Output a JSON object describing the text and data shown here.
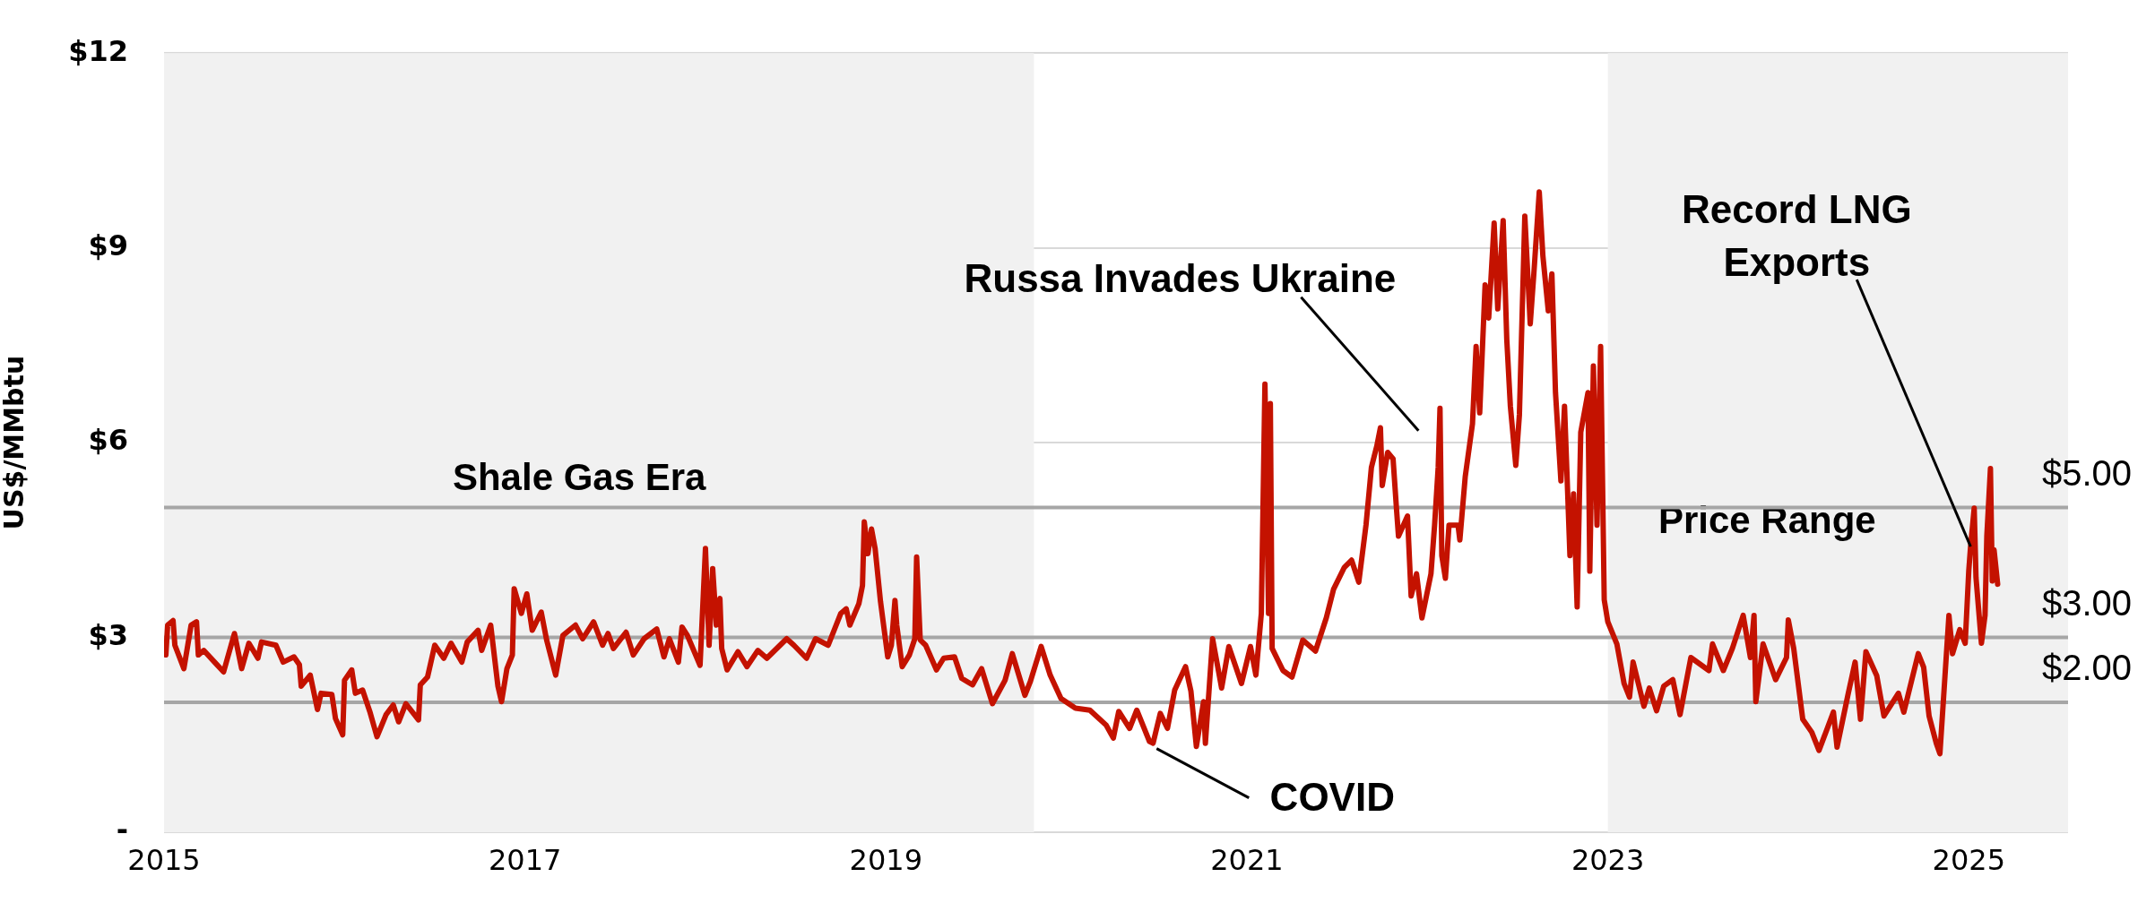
{
  "chart_data": {
    "type": "line",
    "ylabel": "US$/MMbtu",
    "x": [
      2015.01,
      2015.02,
      2015.05,
      2015.06,
      2015.11,
      2015.15,
      2015.18,
      2015.19,
      2015.22,
      2015.28,
      2015.33,
      2015.39,
      2015.43,
      2015.47,
      2015.52,
      2015.54,
      2015.62,
      2015.66,
      2015.72,
      2015.75,
      2015.76,
      2015.81,
      2015.85,
      2015.87,
      2015.93,
      2015.95,
      2015.99,
      2016.0,
      2016.04,
      2016.06,
      2016.1,
      2016.14,
      2016.18,
      2016.23,
      2016.27,
      2016.3,
      2016.34,
      2016.41,
      2016.42,
      2016.46,
      2016.5,
      2016.55,
      2016.59,
      2016.65,
      2016.68,
      2016.74,
      2016.76,
      2016.81,
      2016.85,
      2016.87,
      2016.9,
      2016.93,
      2016.94,
      2016.98,
      2017.01,
      2017.04,
      2017.09,
      2017.12,
      2017.17,
      2017.21,
      2017.28,
      2017.32,
      2017.38,
      2017.43,
      2017.46,
      2017.49,
      2017.56,
      2017.6,
      2017.66,
      2017.73,
      2017.77,
      2017.8,
      2017.85,
      2017.87,
      2017.9,
      2017.97,
      2018.0,
      2018.02,
      2018.04,
      2018.06,
      2018.08,
      2018.09,
      2018.12,
      2018.18,
      2018.23,
      2018.29,
      2018.34,
      2018.45,
      2018.49,
      2018.56,
      2018.61,
      2018.68,
      2018.75,
      2018.78,
      2018.8,
      2018.85,
      2018.87,
      2018.88,
      2018.9,
      2018.92,
      2018.94,
      2018.97,
      2019.01,
      2019.03,
      2019.05,
      2019.06,
      2019.09,
      2019.13,
      2019.16,
      2019.17,
      2019.19,
      2019.22,
      2019.28,
      2019.32,
      2019.38,
      2019.42,
      2019.48,
      2019.53,
      2019.59,
      2019.66,
      2019.7,
      2019.77,
      2019.8,
      2019.86,
      2019.91,
      2019.97,
      2020.05,
      2020.13,
      2020.22,
      2020.26,
      2020.29,
      2020.35,
      2020.39,
      2020.46,
      2020.48,
      2020.52,
      2020.56,
      2020.6,
      2020.66,
      2020.69,
      2020.72,
      2020.76,
      2020.77,
      2020.81,
      2020.86,
      2020.9,
      2020.97,
      2021.02,
      2021.05,
      2021.08,
      2021.1,
      2021.12,
      2021.13,
      2021.14,
      2021.2,
      2021.25,
      2021.31,
      2021.38,
      2021.44,
      2021.48,
      2021.54,
      2021.58,
      2021.62,
      2021.66,
      2021.69,
      2021.72,
      2021.74,
      2021.75,
      2021.78,
      2021.81,
      2021.83,
      2021.84,
      2021.89,
      2021.91,
      2021.94,
      2021.97,
      2022.02,
      2022.04,
      2022.06,
      2022.07,
      2022.08,
      2022.1,
      2022.12,
      2022.17,
      2022.18,
      2022.21,
      2022.25,
      2022.27,
      2022.29,
      2022.32,
      2022.34,
      2022.37,
      2022.39,
      2022.42,
      2022.44,
      2022.46,
      2022.49,
      2022.51,
      2022.54,
      2022.57,
      2022.59,
      2022.62,
      2022.64,
      2022.67,
      2022.69,
      2022.71,
      2022.74,
      2022.76,
      2022.79,
      2022.81,
      2022.83,
      2022.85,
      2022.89,
      2022.9,
      2022.92,
      2022.94,
      2022.96,
      2022.98,
      2023.0,
      2023.05,
      2023.09,
      2023.12,
      2023.14,
      2023.2,
      2023.23,
      2023.27,
      2023.31,
      2023.36,
      2023.4,
      2023.46,
      2023.56,
      2023.58,
      2023.64,
      2023.69,
      2023.75,
      2023.79,
      2023.81,
      2023.82,
      2023.86,
      2023.93,
      2023.99,
      2024.0,
      2024.03,
      2024.08,
      2024.13,
      2024.17,
      2024.25,
      2024.27,
      2024.33,
      2024.37,
      2024.4,
      2024.43,
      2024.49,
      2024.53,
      2024.61,
      2024.64,
      2024.72,
      2024.75,
      2024.78,
      2024.82,
      2024.84,
      2024.86,
      2024.89,
      2024.91,
      2024.95,
      2024.98,
      2025.0,
      2025.01,
      2025.03,
      2025.04,
      2025.07,
      2025.09,
      2025.1,
      2025.12,
      2025.13,
      2025.14,
      2025.16
    ],
    "series": [
      {
        "color": "#c41200",
        "values": [
          2.73,
          3.19,
          3.26,
          2.88,
          2.52,
          3.19,
          3.24,
          2.73,
          2.8,
          2.62,
          2.47,
          3.06,
          2.52,
          2.91,
          2.68,
          2.93,
          2.88,
          2.62,
          2.7,
          2.58,
          2.25,
          2.42,
          1.89,
          2.14,
          2.12,
          1.75,
          1.5,
          2.34,
          2.5,
          2.14,
          2.19,
          1.86,
          1.47,
          1.81,
          1.96,
          1.7,
          1.98,
          1.73,
          2.27,
          2.39,
          2.88,
          2.68,
          2.91,
          2.62,
          2.93,
          3.11,
          2.8,
          3.19,
          2.25,
          2.01,
          2.52,
          2.73,
          3.75,
          3.37,
          3.67,
          3.11,
          3.39,
          2.96,
          2.42,
          3.03,
          3.19,
          2.98,
          3.24,
          2.88,
          3.06,
          2.83,
          3.08,
          2.73,
          2.98,
          3.13,
          2.7,
          2.98,
          2.62,
          3.16,
          3.03,
          2.57,
          4.37,
          2.88,
          4.06,
          3.19,
          3.6,
          2.83,
          2.5,
          2.78,
          2.55,
          2.8,
          2.68,
          2.98,
          2.88,
          2.68,
          2.98,
          2.88,
          3.37,
          3.44,
          3.19,
          3.52,
          3.8,
          4.78,
          4.29,
          4.67,
          4.37,
          3.55,
          2.7,
          2.88,
          3.57,
          3.19,
          2.55,
          2.73,
          2.98,
          4.24,
          2.96,
          2.88,
          2.5,
          2.68,
          2.7,
          2.37,
          2.27,
          2.52,
          1.98,
          2.34,
          2.75,
          2.11,
          2.32,
          2.86,
          2.42,
          2.06,
          1.91,
          1.88,
          1.65,
          1.45,
          1.86,
          1.6,
          1.88,
          1.4,
          1.37,
          1.83,
          1.6,
          2.19,
          2.55,
          2.17,
          1.32,
          2.01,
          1.37,
          2.98,
          2.22,
          2.86,
          2.29,
          2.86,
          2.42,
          3.37,
          6.9,
          3.37,
          6.6,
          2.83,
          2.49,
          2.39,
          2.96,
          2.79,
          3.3,
          3.74,
          4.08,
          4.19,
          3.85,
          4.73,
          5.62,
          5.95,
          6.23,
          5.34,
          5.85,
          5.75,
          4.94,
          4.56,
          4.87,
          3.64,
          3.98,
          3.3,
          3.98,
          4.73,
          5.62,
          6.53,
          4.26,
          3.91,
          4.73,
          4.73,
          4.5,
          5.48,
          6.29,
          7.48,
          6.46,
          8.43,
          7.92,
          9.38,
          8.06,
          9.42,
          7.59,
          6.56,
          5.65,
          6.43,
          9.49,
          7.83,
          8.6,
          9.86,
          8.88,
          8.03,
          8.6,
          6.77,
          5.41,
          6.56,
          4.26,
          5.21,
          3.47,
          6.16,
          6.77,
          4.02,
          7.18,
          4.73,
          7.48,
          3.58,
          3.24,
          2.9,
          2.29,
          2.08,
          2.62,
          1.94,
          2.22,
          1.87,
          2.25,
          2.35,
          1.81,
          2.69,
          2.49,
          2.9,
          2.49,
          2.83,
          3.34,
          2.69,
          3.34,
          2.01,
          2.9,
          2.35,
          2.69,
          3.27,
          2.83,
          1.74,
          1.54,
          1.26,
          1.85,
          1.31,
          2.11,
          2.62,
          1.74,
          2.78,
          2.41,
          1.79,
          2.14,
          1.85,
          2.75,
          2.54,
          1.79,
          1.37,
          1.21,
          2.06,
          3.34,
          2.75,
          3.12,
          2.91,
          4.03,
          4.4,
          4.99,
          3.92,
          2.91,
          3.34,
          4.56,
          5.6,
          3.87,
          4.35,
          3.82
        ]
      }
    ],
    "xlim": [
      2015,
      2025.55
    ],
    "xticks": [
      2015,
      2017,
      2019,
      2021,
      2023,
      2025
    ],
    "ylim": [
      0,
      12
    ],
    "yticks": [
      {
        "value": 0,
        "label": "-"
      },
      {
        "value": 3,
        "label": "$3"
      },
      {
        "value": 6,
        "label": "$6"
      },
      {
        "value": 9,
        "label": "$9"
      },
      {
        "value": 12,
        "label": "$12"
      }
    ],
    "grid": "y",
    "marker": "none",
    "line_style": "solid",
    "bands": [
      {
        "axis": "x",
        "from": 2015,
        "to": 2019.82,
        "label": "Shale Gas Era",
        "color": "#f1f1f1"
      },
      {
        "axis": "x",
        "from": 2023,
        "to": 2025.55,
        "label": "Price Range",
        "color": "#f1f1f1"
      }
    ],
    "ref_lines": [
      {
        "axis": "y",
        "value": 5,
        "label": "$5.00",
        "color": "#a6a6a6"
      },
      {
        "axis": "y",
        "value": 3,
        "label": "$3.00",
        "color": "#a6a6a6"
      },
      {
        "axis": "y",
        "value": 2,
        "label": "$2.00",
        "color": "#a6a6a6"
      }
    ],
    "annotations": [
      {
        "text": "Russa Invades Ukraine",
        "x": 2022.07,
        "y": 6.53
      },
      {
        "text": "COVID",
        "x": 2020.48,
        "y": 1.37
      },
      {
        "text": "Record LNG Exports",
        "x": 2025.01,
        "y": 4.4
      }
    ]
  }
}
